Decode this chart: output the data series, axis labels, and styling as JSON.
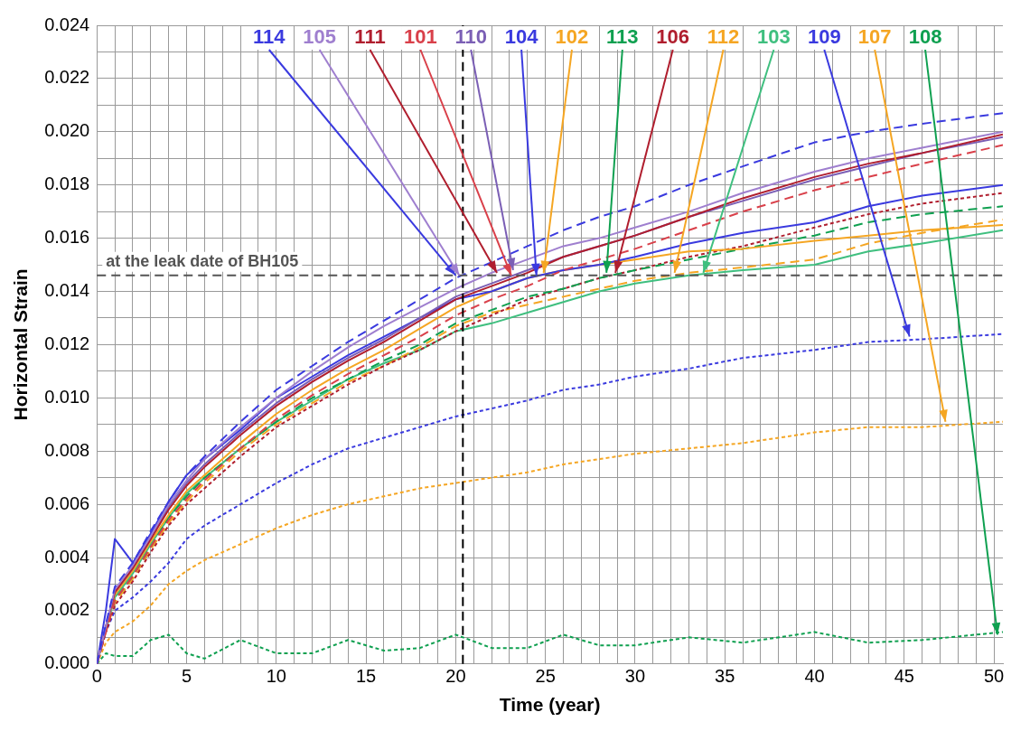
{
  "chart_data": {
    "type": "line",
    "xlabel": "Time (year)",
    "ylabel": "Horizontal Strain",
    "grid": true,
    "legend": false,
    "xlim": [
      0,
      50.5
    ],
    "ylim": [
      0,
      0.024
    ],
    "xticks": [
      0,
      {
        "value": 1,
        "label": null
      },
      {
        "value": 2,
        "label": null
      },
      {
        "value": 3,
        "label": null
      },
      {
        "value": 4,
        "label": null
      },
      5,
      {
        "value": 6,
        "label": null
      },
      {
        "value": 7,
        "label": null
      },
      {
        "value": 8,
        "label": null
      },
      {
        "value": 9,
        "label": null
      },
      10,
      {
        "value": 11,
        "label": null
      },
      {
        "value": 12,
        "label": null
      },
      {
        "value": 13,
        "label": null
      },
      {
        "value": 14,
        "label": null
      },
      15,
      {
        "value": 16,
        "label": null
      },
      {
        "value": 17,
        "label": null
      },
      {
        "value": 18,
        "label": null
      },
      {
        "value": 19,
        "label": null
      },
      20,
      {
        "value": 21,
        "label": null
      },
      {
        "value": 22,
        "label": null
      },
      {
        "value": 23,
        "label": null
      },
      {
        "value": 24,
        "label": null
      },
      25,
      {
        "value": 26,
        "label": null
      },
      {
        "value": 27,
        "label": null
      },
      {
        "value": 28,
        "label": null
      },
      {
        "value": 29,
        "label": null
      },
      30,
      {
        "value": 31,
        "label": null
      },
      {
        "value": 32,
        "label": null
      },
      {
        "value": 33,
        "label": null
      },
      {
        "value": 34,
        "label": null
      },
      35,
      {
        "value": 36,
        "label": null
      },
      {
        "value": 37,
        "label": null
      },
      {
        "value": 38,
        "label": null
      },
      {
        "value": 39,
        "label": null
      },
      40,
      {
        "value": 41,
        "label": null
      },
      {
        "value": 42,
        "label": null
      },
      {
        "value": 43,
        "label": null
      },
      {
        "value": 44,
        "label": null
      },
      45,
      {
        "value": 46,
        "label": null
      },
      {
        "value": 47,
        "label": null
      },
      {
        "value": 48,
        "label": null
      },
      {
        "value": 49,
        "label": null
      },
      50
    ],
    "yticks": [
      {
        "value": 0,
        "label": "0.000"
      },
      {
        "value": 0.001,
        "label": null
      },
      0.002,
      {
        "value": 0.003,
        "label": null
      },
      0.004,
      {
        "value": 0.005,
        "label": null
      },
      0.006,
      {
        "value": 0.007,
        "label": null
      },
      0.008,
      {
        "value": 0.009,
        "label": null
      },
      {
        "value": 0.01,
        "label": "0.010"
      },
      {
        "value": 0.011,
        "label": null
      },
      0.012,
      {
        "value": 0.013,
        "label": null
      },
      0.014,
      {
        "value": 0.015,
        "label": null
      },
      0.016,
      {
        "value": 0.017,
        "label": null
      },
      0.018,
      {
        "value": 0.019,
        "label": null
      },
      {
        "value": 0.02,
        "label": "0.020"
      },
      {
        "value": 0.021,
        "label": null
      },
      0.022,
      {
        "value": 0.023,
        "label": null
      },
      0.024
    ],
    "x": [
      0,
      0.5,
      1,
      2,
      3,
      4,
      5,
      6,
      8,
      10,
      12,
      14,
      16,
      18,
      20,
      22,
      24,
      26,
      28,
      30,
      33,
      36,
      40,
      43,
      46,
      50.5
    ],
    "series": [
      {
        "color": "#3a3adf",
        "line_style": "dashed",
        "values": [
          0,
          0.0015,
          0.0029,
          0.0038,
          0.005,
          0.0061,
          0.0071,
          0.0078,
          0.0091,
          0.0103,
          0.0112,
          0.0121,
          0.0129,
          0.0137,
          0.0145,
          0.0151,
          0.0157,
          0.0163,
          0.0168,
          0.0172,
          0.018,
          0.0187,
          0.0196,
          0.02,
          0.0203,
          0.0207
        ]
      },
      {
        "color": "#9f7fcf",
        "line_style": "solid",
        "values": [
          0,
          0.0014,
          0.0028,
          0.0037,
          0.0048,
          0.006,
          0.0069,
          0.0077,
          0.0089,
          0.01,
          0.011,
          0.0119,
          0.0127,
          0.0134,
          0.0141,
          0.0147,
          0.0152,
          0.0157,
          0.016,
          0.0164,
          0.017,
          0.0177,
          0.0185,
          0.019,
          0.0194,
          0.02
        ]
      },
      {
        "color": "#b01e2e",
        "line_style": "solid",
        "values": [
          0,
          0.0014,
          0.0027,
          0.0036,
          0.0047,
          0.0058,
          0.0067,
          0.0074,
          0.0086,
          0.0097,
          0.0106,
          0.0114,
          0.0121,
          0.0129,
          0.0137,
          0.0142,
          0.0147,
          0.0153,
          0.0157,
          0.0161,
          0.0168,
          0.0175,
          0.0183,
          0.0188,
          0.0192,
          0.0199
        ]
      },
      {
        "color": "#d9404a",
        "line_style": "dashed",
        "values": [
          0,
          0.0012,
          0.0024,
          0.0033,
          0.0044,
          0.0054,
          0.0062,
          0.0069,
          0.0081,
          0.0092,
          0.0101,
          0.0109,
          0.0116,
          0.0123,
          0.0131,
          0.0137,
          0.0142,
          0.0148,
          0.0152,
          0.0156,
          0.0163,
          0.017,
          0.0178,
          0.0183,
          0.0188,
          0.0195
        ]
      },
      {
        "color": "#7b5fb5",
        "line_style": "solid",
        "values": [
          0,
          0.0014,
          0.0027,
          0.0036,
          0.0047,
          0.0059,
          0.0068,
          0.0075,
          0.0087,
          0.0098,
          0.0107,
          0.0115,
          0.0122,
          0.013,
          0.0138,
          0.0143,
          0.0148,
          0.0153,
          0.0157,
          0.0161,
          0.0168,
          0.0174,
          0.0182,
          0.0187,
          0.0192,
          0.0198
        ]
      },
      {
        "color": "#3a3adf",
        "line_style": "solid",
        "values": [
          0,
          0.002,
          0.0047,
          0.0038,
          0.0049,
          0.0061,
          0.0071,
          0.0077,
          0.0088,
          0.01,
          0.0108,
          0.0116,
          0.0123,
          0.013,
          0.0137,
          0.014,
          0.0145,
          0.0148,
          0.015,
          0.0153,
          0.0158,
          0.0162,
          0.0166,
          0.0172,
          0.0176,
          0.018
        ]
      },
      {
        "color": "#f5a623",
        "line_style": "solid",
        "values": [
          0,
          0.0014,
          0.0026,
          0.0035,
          0.0046,
          0.0056,
          0.0065,
          0.0071,
          0.0083,
          0.0094,
          0.0103,
          0.0111,
          0.0118,
          0.0126,
          0.0134,
          0.014,
          0.0145,
          0.0148,
          0.015,
          0.0152,
          0.0155,
          0.0156,
          0.0159,
          0.0161,
          0.0163,
          0.0165
        ]
      },
      {
        "color": "#0fa050",
        "line_style": "dashed",
        "values": [
          0,
          0.0013,
          0.0024,
          0.0033,
          0.0044,
          0.0055,
          0.0063,
          0.007,
          0.0081,
          0.0091,
          0.01,
          0.0107,
          0.0114,
          0.012,
          0.0128,
          0.0133,
          0.0138,
          0.0141,
          0.0145,
          0.0148,
          0.0152,
          0.0156,
          0.0161,
          0.0166,
          0.0169,
          0.0172
        ]
      },
      {
        "color": "#b01e2e",
        "line_style": "dotted",
        "values": [
          0,
          0.0012,
          0.0022,
          0.0031,
          0.0042,
          0.0052,
          0.006,
          0.0066,
          0.0078,
          0.0089,
          0.0097,
          0.0105,
          0.0112,
          0.0118,
          0.0125,
          0.0131,
          0.0137,
          0.0141,
          0.0145,
          0.0148,
          0.0153,
          0.0157,
          0.0164,
          0.0169,
          0.0173,
          0.0177
        ]
      },
      {
        "color": "#f5a623",
        "line_style": "dashed",
        "values": [
          0,
          0.0012,
          0.0023,
          0.0032,
          0.0043,
          0.0053,
          0.0061,
          0.0068,
          0.008,
          0.009,
          0.0098,
          0.0106,
          0.0112,
          0.0119,
          0.0127,
          0.0132,
          0.0135,
          0.0138,
          0.0141,
          0.0144,
          0.0147,
          0.0149,
          0.0152,
          0.0158,
          0.0162,
          0.0167
        ]
      },
      {
        "color": "#3fbf7f",
        "line_style": "solid",
        "values": [
          0,
          0.0013,
          0.0025,
          0.0034,
          0.0045,
          0.0055,
          0.0064,
          0.007,
          0.0081,
          0.0091,
          0.0099,
          0.0107,
          0.0113,
          0.0118,
          0.0125,
          0.0128,
          0.0132,
          0.0136,
          0.014,
          0.0143,
          0.0146,
          0.0148,
          0.015,
          0.0155,
          0.0158,
          0.0163
        ]
      },
      {
        "color": "#3a3adf",
        "line_style": "dotted",
        "values": [
          0,
          0.0012,
          0.002,
          0.0025,
          0.0031,
          0.0038,
          0.0047,
          0.0052,
          0.006,
          0.0068,
          0.0075,
          0.0081,
          0.0085,
          0.0089,
          0.0093,
          0.0096,
          0.0099,
          0.0103,
          0.0105,
          0.0108,
          0.0111,
          0.0115,
          0.0118,
          0.0121,
          0.0122,
          0.0124
        ]
      },
      {
        "color": "#f5a623",
        "line_style": "dotted",
        "values": [
          0,
          0.0008,
          0.0012,
          0.0016,
          0.0022,
          0.003,
          0.0035,
          0.0039,
          0.0045,
          0.0051,
          0.0056,
          0.006,
          0.0063,
          0.0066,
          0.0068,
          0.007,
          0.0072,
          0.0075,
          0.0077,
          0.0079,
          0.0081,
          0.0083,
          0.0087,
          0.0089,
          0.0089,
          0.0091
        ]
      },
      {
        "color": "#0fa050",
        "line_style": "dotted",
        "values": [
          0,
          0.0004,
          0.0003,
          0.0003,
          0.0009,
          0.0011,
          0.0004,
          0.0002,
          0.0009,
          0.0004,
          0.0004,
          0.0009,
          0.0005,
          0.0006,
          0.0011,
          0.0006,
          0.0006,
          0.0011,
          0.0007,
          0.0007,
          0.001,
          0.0008,
          0.0012,
          0.0008,
          0.0009,
          0.0012
        ]
      }
    ],
    "annotations": [
      {
        "text": "114",
        "x": 20.0,
        "y": 0.0146
      },
      {
        "text": "105",
        "x": 20.2,
        "y": 0.0146
      },
      {
        "text": "111",
        "x": 22.3,
        "y": 0.0147
      },
      {
        "text": "101",
        "x": 23.1,
        "y": 0.0146
      },
      {
        "text": "110",
        "x": 23.2,
        "y": 0.0148
      },
      {
        "text": "104",
        "x": 24.5,
        "y": 0.0146
      },
      {
        "text": "102",
        "x": 24.9,
        "y": 0.0147
      },
      {
        "text": "113",
        "x": 28.4,
        "y": 0.0147
      },
      {
        "text": "106",
        "x": 28.9,
        "y": 0.0147
      },
      {
        "text": "112",
        "x": 32.2,
        "y": 0.0147
      },
      {
        "text": "103",
        "x": 33.8,
        "y": 0.0147
      },
      {
        "text": "109",
        "x": 45.3,
        "y": 0.0123
      },
      {
        "text": "107",
        "x": 47.3,
        "y": 0.0091
      },
      {
        "text": "108",
        "x": 50.2,
        "y": 0.0011
      }
    ],
    "ref_lines": [
      {
        "axis": "y",
        "value": 0.0146,
        "label": "at the leak date of BH105",
        "color": "#555555",
        "line_style": "dashed"
      },
      {
        "axis": "x",
        "value": 20.4,
        "color": "#000000",
        "line_style": "dashed"
      }
    ]
  }
}
